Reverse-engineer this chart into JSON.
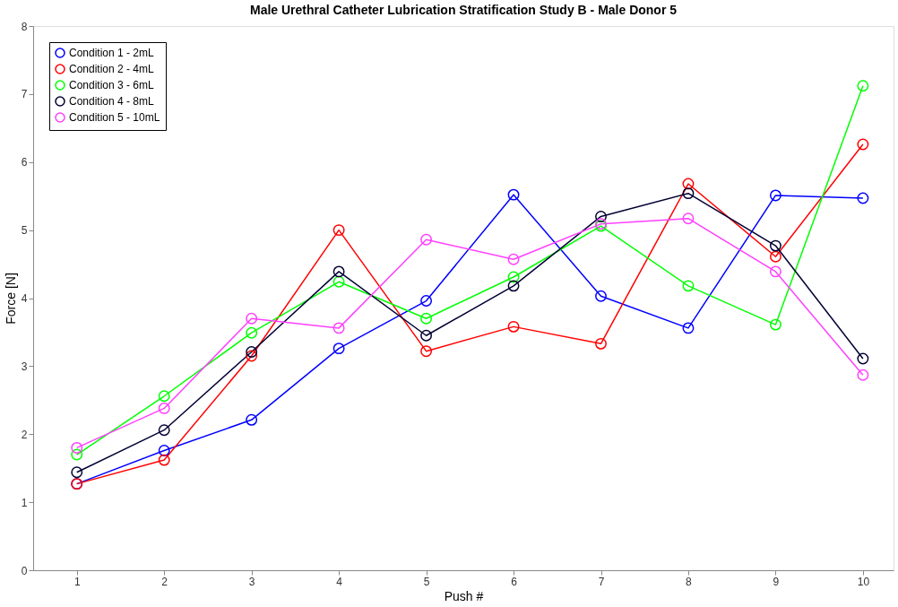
{
  "chart_data": {
    "type": "line",
    "title": "Male Urethral Catheter Lubrication Stratification Study B - Male Donor 5",
    "xlabel": "Push #",
    "ylabel": "Force [N]",
    "x": [
      1,
      2,
      3,
      4,
      5,
      6,
      7,
      8,
      9,
      10
    ],
    "series": [
      {
        "name": "Condition 1 - 2mL",
        "color": "#0000ff",
        "values": [
          1.27,
          1.76,
          2.21,
          3.26,
          3.96,
          5.52,
          4.03,
          3.56,
          5.51,
          5.47
        ]
      },
      {
        "name": "Condition 2 - 4mL",
        "color": "#ff0000",
        "values": [
          1.27,
          1.62,
          3.15,
          5.0,
          3.22,
          3.58,
          3.33,
          5.68,
          4.61,
          6.26
        ]
      },
      {
        "name": "Condition 3 - 6mL",
        "color": "#00ff00",
        "values": [
          1.7,
          2.56,
          3.49,
          4.24,
          3.7,
          4.31,
          5.06,
          4.18,
          3.61,
          7.12
        ]
      },
      {
        "name": "Condition 4 - 8mL",
        "color": "#000033",
        "values": [
          1.44,
          2.06,
          3.21,
          4.39,
          3.45,
          4.18,
          5.2,
          5.54,
          4.77,
          3.11
        ]
      },
      {
        "name": "Condition 5 - 10mL",
        "color": "#ff40ff",
        "values": [
          1.8,
          2.38,
          3.7,
          3.56,
          4.86,
          4.57,
          5.09,
          5.17,
          4.39,
          2.87
        ]
      }
    ],
    "xlim": [
      0.5,
      10.35
    ],
    "xticks": [
      1,
      2,
      3,
      4,
      5,
      6,
      7,
      8,
      9,
      10
    ],
    "ylim": [
      0,
      8
    ],
    "yticks": [
      0,
      1,
      2,
      3,
      4,
      5,
      6,
      7,
      8
    ],
    "grid": false,
    "legend": "top left",
    "marker": "circle",
    "line_style": "solid"
  }
}
